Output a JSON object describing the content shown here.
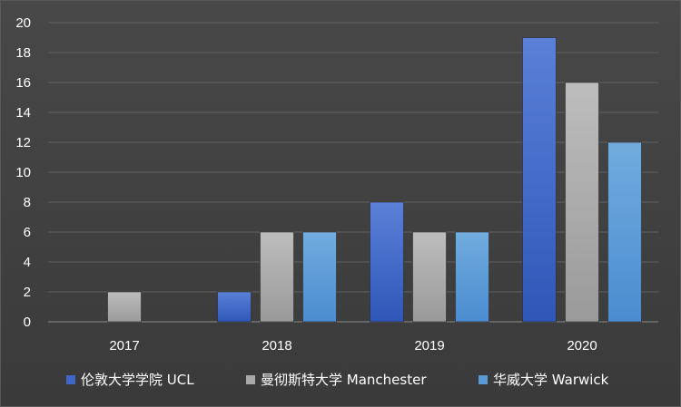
{
  "chart_data": {
    "type": "bar",
    "title": "",
    "xlabel": "",
    "ylabel": "",
    "categories": [
      "2017",
      "2018",
      "2019",
      "2020"
    ],
    "series": [
      {
        "name": "伦敦大学学院 UCL",
        "values": [
          0,
          2,
          8,
          19
        ],
        "color": "#3f67c8"
      },
      {
        "name": "曼彻斯特大学 Manchester",
        "values": [
          2,
          6,
          6,
          16
        ],
        "color": "#a9a9a9"
      },
      {
        "name": "华威大学 Warwick",
        "values": [
          0,
          6,
          6,
          12
        ],
        "color": "#5b9bd5"
      }
    ],
    "ylim": [
      0,
      20
    ],
    "yticks": [
      "0",
      "2",
      "4",
      "6",
      "8",
      "10",
      "12",
      "14",
      "16",
      "18",
      "20"
    ],
    "grid": true,
    "legend": "bottom"
  }
}
